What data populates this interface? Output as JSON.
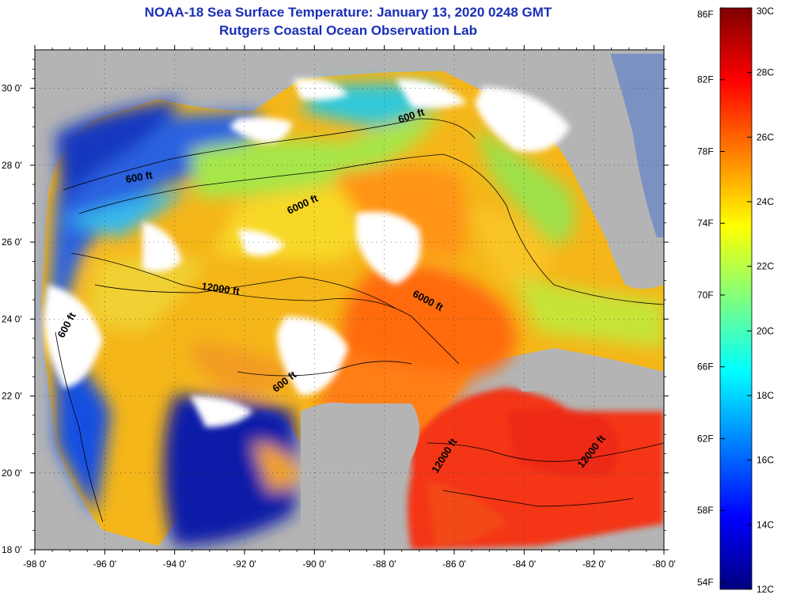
{
  "title": {
    "line1": "NOAA-18 Sea Surface Temperature:  January 13, 2020 0248 GMT",
    "line2": "Rutgers Coastal Ocean Observation Lab"
  },
  "map": {
    "lon_range": [
      -98,
      -80
    ],
    "lat_range": [
      18,
      31
    ],
    "lon_ticks": [
      {
        "value": -98,
        "label": "-98 0'"
      },
      {
        "value": -96,
        "label": "-96 0'"
      },
      {
        "value": -94,
        "label": "-94 0'"
      },
      {
        "value": -92,
        "label": "-92 0'"
      },
      {
        "value": -90,
        "label": "-90 0'"
      },
      {
        "value": -88,
        "label": "-88 0'"
      },
      {
        "value": -86,
        "label": "-86 0'"
      },
      {
        "value": -84,
        "label": "-84 0'"
      },
      {
        "value": -82,
        "label": "-82 0'"
      },
      {
        "value": -80,
        "label": "-80 0'"
      }
    ],
    "lat_ticks": [
      {
        "value": 18,
        "label": "18 0'"
      },
      {
        "value": 20,
        "label": "20 0'"
      },
      {
        "value": 22,
        "label": "22 0'"
      },
      {
        "value": 24,
        "label": "24 0'"
      },
      {
        "value": 26,
        "label": "26 0'"
      },
      {
        "value": 28,
        "label": "28 0'"
      },
      {
        "value": 30,
        "label": "30 0'"
      }
    ],
    "grid": "dotted",
    "contour_labels": [
      {
        "text": "600 ft",
        "lon": -87.2,
        "lat": 29.2,
        "rotate": -18
      },
      {
        "text": "600 ft",
        "lon": -95.0,
        "lat": 27.6,
        "rotate": -10
      },
      {
        "text": "6000 ft",
        "lon": -90.3,
        "lat": 26.9,
        "rotate": -25
      },
      {
        "text": "12000 ft",
        "lon": -92.7,
        "lat": 24.7,
        "rotate": 8
      },
      {
        "text": "6000 ft",
        "lon": -86.8,
        "lat": 24.4,
        "rotate": 28
      },
      {
        "text": "600 ft",
        "lon": -97.0,
        "lat": 23.8,
        "rotate": -62
      },
      {
        "text": "600 ft",
        "lon": -90.8,
        "lat": 22.3,
        "rotate": -38
      },
      {
        "text": "12000 ft",
        "lon": -86.2,
        "lat": 20.4,
        "rotate": -58
      },
      {
        "text": "12000 ft",
        "lon": -82.0,
        "lat": 20.5,
        "rotate": -52
      }
    ]
  },
  "colorbar": {
    "fahrenheit_labels": [
      {
        "value": 86,
        "label": "86F"
      },
      {
        "value": 82,
        "label": "82F"
      },
      {
        "value": 78,
        "label": "78F"
      },
      {
        "value": 74,
        "label": "74F"
      },
      {
        "value": 70,
        "label": "70F"
      },
      {
        "value": 66,
        "label": "66F"
      },
      {
        "value": 62,
        "label": "62F"
      },
      {
        "value": 58,
        "label": "58F"
      },
      {
        "value": 54,
        "label": "54F"
      }
    ],
    "celsius_labels": [
      {
        "value": 30,
        "label": "30C"
      },
      {
        "value": 28,
        "label": "28C"
      },
      {
        "value": 26,
        "label": "26C"
      },
      {
        "value": 24,
        "label": "24C"
      },
      {
        "value": 22,
        "label": "22C"
      },
      {
        "value": 20,
        "label": "20C"
      },
      {
        "value": 18,
        "label": "18C"
      },
      {
        "value": 16,
        "label": "16C"
      },
      {
        "value": 14,
        "label": "14C"
      },
      {
        "value": 12,
        "label": "12C"
      }
    ],
    "celsius_range": [
      12,
      30
    ],
    "colors": [
      "#00007f",
      "#0000ff",
      "#007fff",
      "#00ffff",
      "#7fff7f",
      "#ffff00",
      "#ff7f00",
      "#ff0000",
      "#7f0000"
    ]
  },
  "colors": {
    "land": "#b4b4b4",
    "cloud": "#ffffff",
    "title": "#1a2fb8"
  }
}
